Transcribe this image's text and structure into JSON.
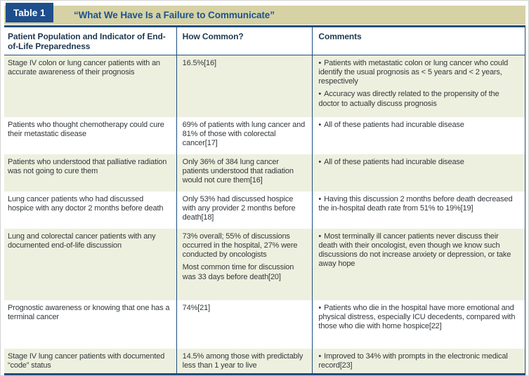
{
  "glyphs": {
    "bullet": "•"
  },
  "colors": {
    "accent_navy": "#1e4e8c",
    "rule_navy": "#1e4e7e",
    "titlebar_khaki": "#d6d2a6",
    "row_green": "#eef0df",
    "title_text": "#1c538c",
    "body_text": "#33383c"
  },
  "table": {
    "label": "Table 1",
    "title": "“What We Have Is a Failure to Communicate”",
    "columns": [
      "Patient Population and Indicator of End-of-Life Preparedness",
      "How Common?",
      "Comments"
    ],
    "rows": [
      {
        "population": "Stage IV colon or lung cancer patients with an accurate awareness of their prognosis",
        "how_common": [
          "16.5%[16]"
        ],
        "comments": [
          "Patients with metastatic colon or lung cancer who could identify the usual prognosis as < 5 years and < 2 years, respectively",
          "Accuracy was directly related to the propensity of the doctor to actually discuss prognosis"
        ]
      },
      {
        "population": "Patients who thought chemotherapy could cure their metastatic disease",
        "how_common": [
          "69% of patients with lung cancer and 81% of those with colorectal cancer[17]"
        ],
        "comments": [
          "All of these patients had incurable disease"
        ]
      },
      {
        "population": "Patients who understood that palliative radiation was not going to cure them",
        "how_common": [
          "Only 36% of 384 lung cancer patients understood that radiation would not cure them[16]"
        ],
        "comments": [
          "All of these patients had incurable disease"
        ]
      },
      {
        "population": "Lung cancer patients who had discussed hospice with any doctor 2 months before death",
        "how_common": [
          "Only 53% had discussed hospice with any provider 2 months before death[18]"
        ],
        "comments": [
          "Having this discussion 2 months before death decreased the in-hospital death rate from 51% to 19%[19]"
        ]
      },
      {
        "population": "Lung and colorectal cancer patients with any documented end-of-life discussion",
        "how_common": [
          "73% overall; 55% of discussions occurred in the hospital, 27% were conducted by oncologists",
          "Most common time for discussion was 33 days before death[20]"
        ],
        "comments": [
          "Most terminally ill cancer patients never discuss their death with their oncologist, even though we know such discussions do not increase anxiety or depression, or take away hope"
        ]
      },
      {
        "population": "Prognostic awareness or knowing that one has a terminal cancer",
        "how_common": [
          "74%[21]"
        ],
        "comments": [
          "Patients who die in the hospital have more emotional and physical distress, especially ICU decedents, compared with those who die with home hospice[22]"
        ]
      },
      {
        "population": "Stage IV lung cancer patients with documented “code” status",
        "how_common": [
          "14.5% among those with predictably less than 1 year to live"
        ],
        "comments": [
          "Improved to 34% with prompts in the electronic medical record[23]"
        ]
      }
    ]
  }
}
